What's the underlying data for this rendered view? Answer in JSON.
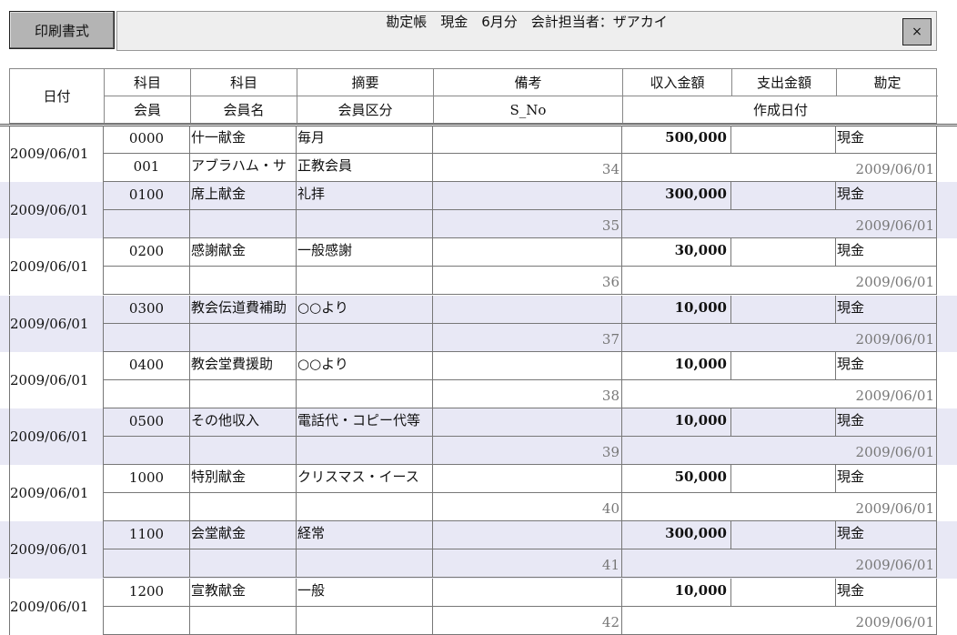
{
  "toolbar": {
    "print_label": "印刷書式",
    "title": "勘定帳　現金　6月分　会計担当者：ザアカイ",
    "close_label": "×"
  },
  "header": {
    "date": "日付",
    "top": [
      "科目",
      "科目",
      "摘要",
      "備考",
      "収入金額",
      "支出金額",
      "勘定"
    ],
    "bottom": [
      "会員",
      "会員名",
      "会員区分",
      "S_No",
      "作成日付"
    ]
  },
  "colors": {
    "alt_row": "#e8e8f5",
    "button": "#b4b4b4",
    "titlebar": "#eeeeee"
  },
  "rows": [
    {
      "date": "2009/06/01",
      "code": "0000",
      "subject": "什一献金",
      "summary": "毎月",
      "note": "",
      "income": "500,000",
      "expense": "",
      "account": "現金",
      "member": "001",
      "member_name": "アブラハム・サ",
      "member_class": "正教会員",
      "s_no": "34",
      "created": "2009/06/01"
    },
    {
      "date": "2009/06/01",
      "code": "0100",
      "subject": "席上献金",
      "summary": "礼拝",
      "note": "",
      "income": "300,000",
      "expense": "",
      "account": "現金",
      "member": "",
      "member_name": "",
      "member_class": "",
      "s_no": "35",
      "created": "2009/06/01"
    },
    {
      "date": "2009/06/01",
      "code": "0200",
      "subject": "感謝献金",
      "summary": "一般感謝",
      "note": "",
      "income": "30,000",
      "expense": "",
      "account": "現金",
      "member": "",
      "member_name": "",
      "member_class": "",
      "s_no": "36",
      "created": "2009/06/01"
    },
    {
      "date": "2009/06/01",
      "code": "0300",
      "subject": "教会伝道費補助",
      "summary": "○○より",
      "note": "",
      "income": "10,000",
      "expense": "",
      "account": "現金",
      "member": "",
      "member_name": "",
      "member_class": "",
      "s_no": "37",
      "created": "2009/06/01"
    },
    {
      "date": "2009/06/01",
      "code": "0400",
      "subject": "教会堂費援助",
      "summary": "○○より",
      "note": "",
      "income": "10,000",
      "expense": "",
      "account": "現金",
      "member": "",
      "member_name": "",
      "member_class": "",
      "s_no": "38",
      "created": "2009/06/01"
    },
    {
      "date": "2009/06/01",
      "code": "0500",
      "subject": "その他収入",
      "summary": "電話代・コピー代等",
      "note": "",
      "income": "10,000",
      "expense": "",
      "account": "現金",
      "member": "",
      "member_name": "",
      "member_class": "",
      "s_no": "39",
      "created": "2009/06/01"
    },
    {
      "date": "2009/06/01",
      "code": "1000",
      "subject": "特別献金",
      "summary": "クリスマス・イース",
      "note": "",
      "income": "50,000",
      "expense": "",
      "account": "現金",
      "member": "",
      "member_name": "",
      "member_class": "",
      "s_no": "40",
      "created": "2009/06/01"
    },
    {
      "date": "2009/06/01",
      "code": "1100",
      "subject": "会堂献金",
      "summary": "経常",
      "note": "",
      "income": "300,000",
      "expense": "",
      "account": "現金",
      "member": "",
      "member_name": "",
      "member_class": "",
      "s_no": "41",
      "created": "2009/06/01"
    },
    {
      "date": "2009/06/01",
      "code": "1200",
      "subject": "宣教献金",
      "summary": "一般",
      "note": "",
      "income": "10,000",
      "expense": "",
      "account": "現金",
      "member": "",
      "member_name": "",
      "member_class": "",
      "s_no": "42",
      "created": "2009/06/01"
    }
  ]
}
